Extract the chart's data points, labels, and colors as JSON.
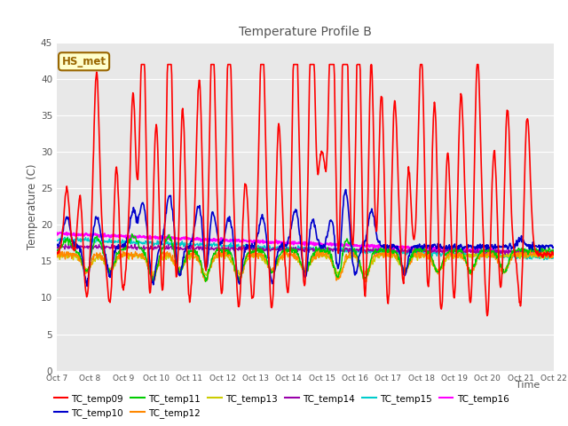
{
  "title": "Temperature Profile B",
  "xlabel": "Time",
  "ylabel": "Temperature (C)",
  "ylim": [
    0,
    45
  ],
  "x_tick_labels": [
    "Oct 7",
    "Oct 8",
    "Oct 9",
    "Oct 10",
    "Oct 11",
    "Oct 12",
    "Oct 13",
    "Oct 14",
    "Oct 15",
    "Oct 16",
    "Oct 17",
    "Oct 18",
    "Oct 19",
    "Oct 20",
    "Oct 21",
    "Oct 22"
  ],
  "annotation_text": "HS_met",
  "annotation_bg": "#ffffcc",
  "annotation_border": "#996600",
  "series_colors": {
    "TC_temp09": "#ff0000",
    "TC_temp10": "#0000cc",
    "TC_temp11": "#00cc00",
    "TC_temp12": "#ff8800",
    "TC_temp13": "#cccc00",
    "TC_temp14": "#9900aa",
    "TC_temp15": "#00cccc",
    "TC_temp16": "#ff00ff"
  },
  "background_color": "#e8e8e8",
  "grid_color": "#ffffff",
  "title_color": "#555555",
  "tick_label_color": "#555555"
}
